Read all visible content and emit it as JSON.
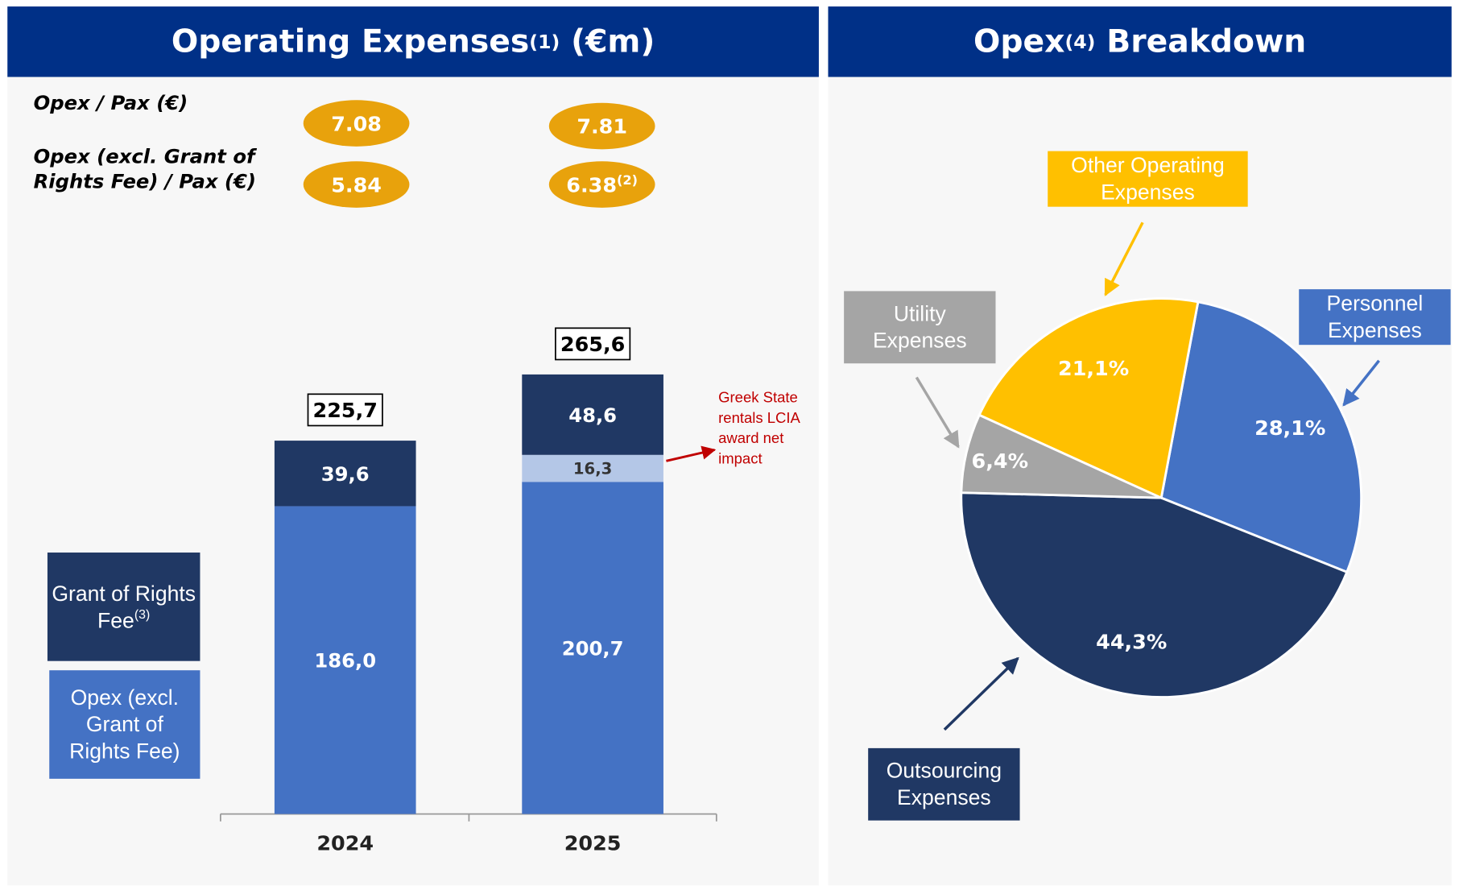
{
  "chart_data": [
    {
      "type": "bar",
      "stacked": true,
      "title": "Operating Expenses",
      "title_sup": "(1)",
      "title_unit": "(€m)",
      "metrics": [
        {
          "label": "Opex / Pax (€)",
          "values": [
            7.08,
            7.81
          ],
          "color": "#e8a20c"
        },
        {
          "label": "Opex (excl. Grant of Rights Fee) / Pax (€)",
          "values": [
            5.84,
            6.38
          ],
          "value_sups": [
            null,
            "(2)"
          ],
          "color": "#e8a20c"
        }
      ],
      "categories": [
        "2024",
        "2025"
      ],
      "series": [
        {
          "name": "Opex (excl. Grant of Rights Fee)",
          "color": "#4472c4",
          "values": [
            186.0,
            200.7
          ],
          "value_labels": [
            "186,0",
            "200,7"
          ]
        },
        {
          "name": "Greek State rentals LCIA award net impact",
          "color": "#b4c7e7",
          "values": [
            null,
            16.3
          ],
          "value_labels": [
            null,
            "16,3"
          ],
          "legend": false
        },
        {
          "name": "Grant of Rights Fee",
          "name_sup": "(3)",
          "color": "#203864",
          "values": [
            39.6,
            48.6
          ],
          "value_labels": [
            "39,6",
            "48,6"
          ]
        }
      ],
      "totals": [
        225.7,
        265.6
      ],
      "total_labels": [
        "225,7",
        "265,6"
      ]
    },
    {
      "type": "pie",
      "title": "Opex",
      "title_sup": "(4)",
      "title_unit": "Breakdown",
      "categories": [
        "Personnel Expenses",
        "Outsourcing Expenses",
        "Utility Expenses",
        "Other Operating Expenses"
      ],
      "values": [
        28.1,
        44.3,
        6.4,
        21.1
      ],
      "value_labels": [
        "28,1%",
        "44,3%",
        "6,4%",
        "21,1%"
      ],
      "colors": [
        "#4472c4",
        "#203864",
        "#a5a5a5",
        "#ffc000"
      ]
    }
  ]
}
